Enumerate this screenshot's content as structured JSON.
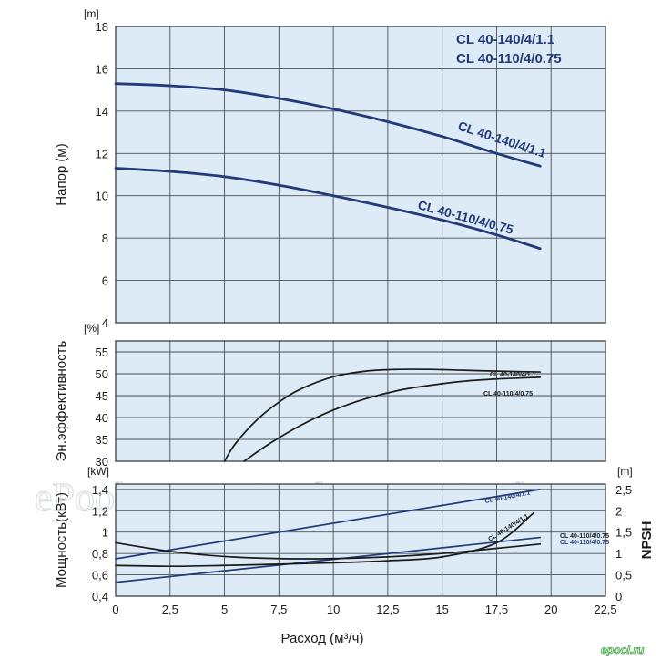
{
  "chart_data": [
    {
      "type": "line",
      "panel": "head",
      "ylabel": "Напор (м)",
      "yunit": "[m]",
      "ylim": [
        4,
        18
      ],
      "yticks": [
        4,
        6,
        8,
        10,
        12,
        14,
        16,
        18
      ],
      "xlim": [
        0,
        22.5
      ],
      "grid": true,
      "legend": [
        "CL 40-140/4/1.1",
        "CL 40-110/4/0.75"
      ],
      "legend_position": "top-right",
      "series": [
        {
          "name": "CL 40-140/4/1.1",
          "color": "#233a7a",
          "x": [
            0,
            2.5,
            5,
            7.5,
            10,
            12.5,
            15,
            17.5,
            19.5
          ],
          "y": [
            15.3,
            15.2,
            15.0,
            14.6,
            14.1,
            13.5,
            12.8,
            12.0,
            11.4
          ]
        },
        {
          "name": "CL 40-110/4/0.75",
          "color": "#233a7a",
          "x": [
            0,
            2.5,
            5,
            7.5,
            10,
            12.5,
            15,
            17.5,
            19.5
          ],
          "y": [
            11.3,
            11.15,
            10.9,
            10.5,
            10.0,
            9.45,
            8.85,
            8.15,
            7.5
          ]
        }
      ]
    },
    {
      "type": "line",
      "panel": "efficiency",
      "ylabel": "Эн.эффективность",
      "yunit": "[%]",
      "ylim": [
        30,
        57.5
      ],
      "yticks": [
        30,
        35,
        40,
        45,
        50,
        55
      ],
      "xlim": [
        0,
        22.5
      ],
      "grid": true,
      "series": [
        {
          "name": "CL 40-140/4/1.1",
          "color": "#1a1a1a",
          "x": [
            5,
            5.5,
            6.5,
            7.5,
            8.5,
            10,
            11.5,
            13,
            14.5,
            16,
            17.5,
            19.5
          ],
          "y": [
            30,
            34,
            39.5,
            43.5,
            46.5,
            49.3,
            50.6,
            51.0,
            51.0,
            50.8,
            50.6,
            50.4
          ]
        },
        {
          "name": "CL 40-110/4/0.75",
          "color": "#1a1a1a",
          "x": [
            5.9,
            7,
            8.5,
            10,
            11.5,
            13,
            14.5,
            16,
            17.5,
            19.5
          ],
          "y": [
            30,
            33.8,
            38.2,
            41.7,
            44.3,
            46.2,
            47.4,
            48.3,
            48.8,
            49.2
          ]
        }
      ]
    },
    {
      "type": "line",
      "panel": "power_npsh",
      "ylabel": "Мощность(кВт)",
      "yunit": "[kW]",
      "ylim": [
        0.4,
        1.45
      ],
      "yticks": [
        0.4,
        0.6,
        0.8,
        1,
        1.2,
        1.4
      ],
      "ytick_labels": [
        "0,4",
        "0,6",
        "0,8",
        "1",
        "1,2",
        "1,4"
      ],
      "y2label": "NPSH",
      "y2unit": "[m]",
      "y2lim": [
        0,
        2.625
      ],
      "y2ticks": [
        0,
        0.5,
        1,
        1.5,
        2,
        2.5
      ],
      "y2tick_labels": [
        "0",
        "0,5",
        "1",
        "1,5",
        "2",
        "2,5"
      ],
      "xlabel": "Расход (м³/ч)",
      "xlim": [
        0,
        22.5
      ],
      "xticks": [
        0,
        2.5,
        5,
        7.5,
        10,
        12.5,
        15,
        17.5,
        20,
        22.5
      ],
      "xtick_labels": [
        "0",
        "2,5",
        "5",
        "7,5",
        "10",
        "12,5",
        "15",
        "17,5",
        "20",
        "22,5"
      ],
      "grid": true,
      "series": [
        {
          "name": "CL 40-140/4/1.1",
          "kind": "power",
          "axis": "left",
          "color": "#233a7a",
          "x": [
            0,
            19.5
          ],
          "y": [
            0.75,
            1.4
          ]
        },
        {
          "name": "CL 40-110/4/0.75",
          "kind": "power",
          "axis": "left",
          "color": "#233a7a",
          "x": [
            0,
            19.5
          ],
          "y": [
            0.53,
            0.95
          ]
        },
        {
          "name": "CL 40-140/4/1.1",
          "kind": "npsh",
          "axis": "right",
          "color": "#1a1a1a",
          "x": [
            0,
            2.5,
            5,
            7.5,
            10,
            12.5,
            15,
            17.5,
            19.2
          ],
          "y": [
            0.72,
            0.7,
            0.72,
            0.75,
            0.78,
            0.83,
            0.92,
            1.25,
            1.95
          ]
        },
        {
          "name": "CL 40-110/4/0.75",
          "kind": "npsh",
          "axis": "right",
          "color": "#1a1a1a",
          "x": [
            0,
            2.5,
            5,
            7.5,
            10,
            12.5,
            15,
            17.5,
            19.5
          ],
          "y": [
            1.25,
            1.05,
            0.93,
            0.88,
            0.88,
            0.92,
            1.0,
            1.12,
            1.22
          ]
        }
      ]
    }
  ],
  "watermark": "ePool.ru",
  "logo": "epool.ru"
}
